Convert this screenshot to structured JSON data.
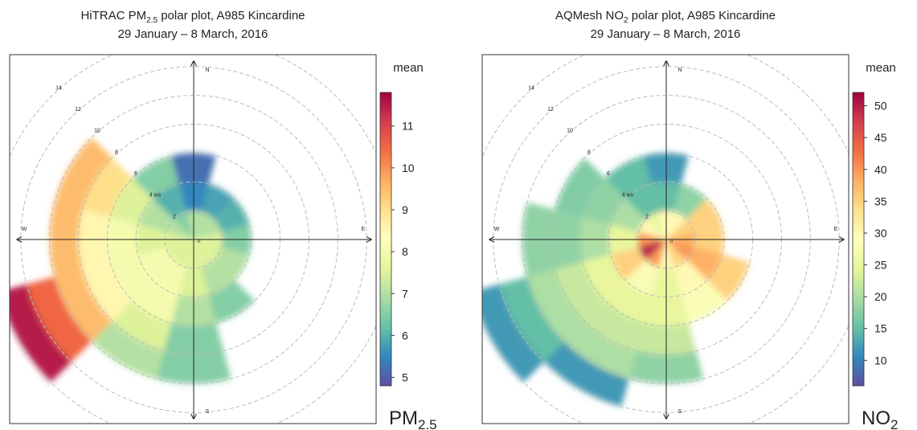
{
  "chart_data": [
    {
      "type": "polar",
      "title": {
        "before": "HiTRAC PM",
        "sub": "2.5",
        "after": " polar plot, A985 Kincardine"
      },
      "subtitle": "29 January – 8 March, 2016",
      "colorbar_title": "mean",
      "unit": {
        "base": "PM",
        "sub": "2.5"
      },
      "compass": [
        "N",
        "E",
        "S",
        "W"
      ],
      "rlim": [
        0,
        16
      ],
      "rticks": [
        2,
        {
          "value": 4,
          "label": "4 ws"
        },
        6,
        8,
        10,
        12,
        14
      ],
      "directions": [
        0,
        30,
        60,
        90,
        120,
        150,
        180,
        210,
        240,
        270,
        300,
        330
      ],
      "ws_bins": [
        0,
        2,
        4,
        6,
        8,
        10,
        12,
        14
      ],
      "values": [
        [
          7,
          5.5,
          5.2,
          null,
          null,
          null,
          null
        ],
        [
          7,
          5.8,
          null,
          null,
          null,
          null,
          null
        ],
        [
          7,
          6,
          null,
          null,
          null,
          null,
          null
        ],
        [
          7.5,
          6.5,
          null,
          null,
          null,
          null,
          null
        ],
        [
          7.5,
          7,
          null,
          null,
          null,
          null,
          null
        ],
        [
          7.5,
          7,
          6.5,
          null,
          null,
          null,
          null
        ],
        [
          7.5,
          7.5,
          7,
          6.5,
          6.5,
          null,
          null
        ],
        [
          7.5,
          8,
          8,
          7.5,
          7,
          null,
          null
        ],
        [
          7.5,
          8,
          8,
          8.5,
          9.5,
          10.5,
          11.5
        ],
        [
          7.5,
          7.5,
          8,
          8.5,
          9.5,
          null,
          null
        ],
        [
          7,
          7,
          7.5,
          9,
          9.5,
          null,
          null
        ],
        [
          6.5,
          6,
          6.5,
          null,
          null,
          null,
          null
        ]
      ],
      "clim": [
        4.8,
        11.8
      ],
      "cticks": [
        5,
        6,
        7,
        8,
        9,
        10,
        11
      ],
      "colormap": [
        "#5e4fa2",
        "#3288bd",
        "#66c2a5",
        "#abdda4",
        "#e6f598",
        "#ffffbf",
        "#fee08b",
        "#fdae61",
        "#f46d43",
        "#d53e4f",
        "#9e0142"
      ],
      "grid": true
    },
    {
      "type": "polar",
      "title": {
        "before": "AQMesh NO",
        "sub": "2",
        "after": " polar plot, A985 Kincardine"
      },
      "subtitle": "29 January – 8 March, 2016",
      "colorbar_title": "mean",
      "unit": {
        "base": "NO",
        "sub": "2"
      },
      "compass": [
        "N",
        "E",
        "S",
        "W"
      ],
      "rlim": [
        0,
        16
      ],
      "rticks": [
        2,
        {
          "value": 4,
          "label": "4 ws"
        },
        6,
        8,
        10,
        12,
        14
      ],
      "directions": [
        0,
        30,
        60,
        90,
        120,
        150,
        180,
        210,
        240,
        270,
        300,
        330
      ],
      "ws_bins": [
        0,
        2,
        4,
        6,
        8,
        10,
        12,
        14
      ],
      "values": [
        [
          30,
          15,
          12,
          null,
          null,
          null,
          null
        ],
        [
          30,
          18,
          null,
          null,
          null,
          null,
          null
        ],
        [
          35,
          35,
          null,
          null,
          null,
          null,
          null
        ],
        [
          38,
          35,
          null,
          null,
          null,
          null,
          null
        ],
        [
          40,
          38,
          35,
          null,
          null,
          null,
          null
        ],
        [
          35,
          30,
          28,
          null,
          null,
          null,
          null
        ],
        [
          30,
          25,
          25,
          22,
          18,
          null,
          null
        ],
        [
          40,
          28,
          25,
          22,
          20,
          12,
          null
        ],
        [
          50,
          35,
          25,
          22,
          20,
          15,
          12
        ],
        [
          40,
          25,
          20,
          18,
          18,
          null,
          null
        ],
        [
          30,
          20,
          18,
          17,
          null,
          null,
          null
        ],
        [
          25,
          15,
          15,
          null,
          null,
          null,
          null
        ]
      ],
      "clim": [
        6,
        52.1
      ],
      "cticks": [
        10,
        15,
        20,
        25,
        30,
        35,
        40,
        45,
        50
      ],
      "colormap": [
        "#5e4fa2",
        "#3288bd",
        "#66c2a5",
        "#abdda4",
        "#e6f598",
        "#ffffbf",
        "#fee08b",
        "#fdae61",
        "#f46d43",
        "#d53e4f",
        "#9e0142"
      ],
      "grid": true
    }
  ]
}
